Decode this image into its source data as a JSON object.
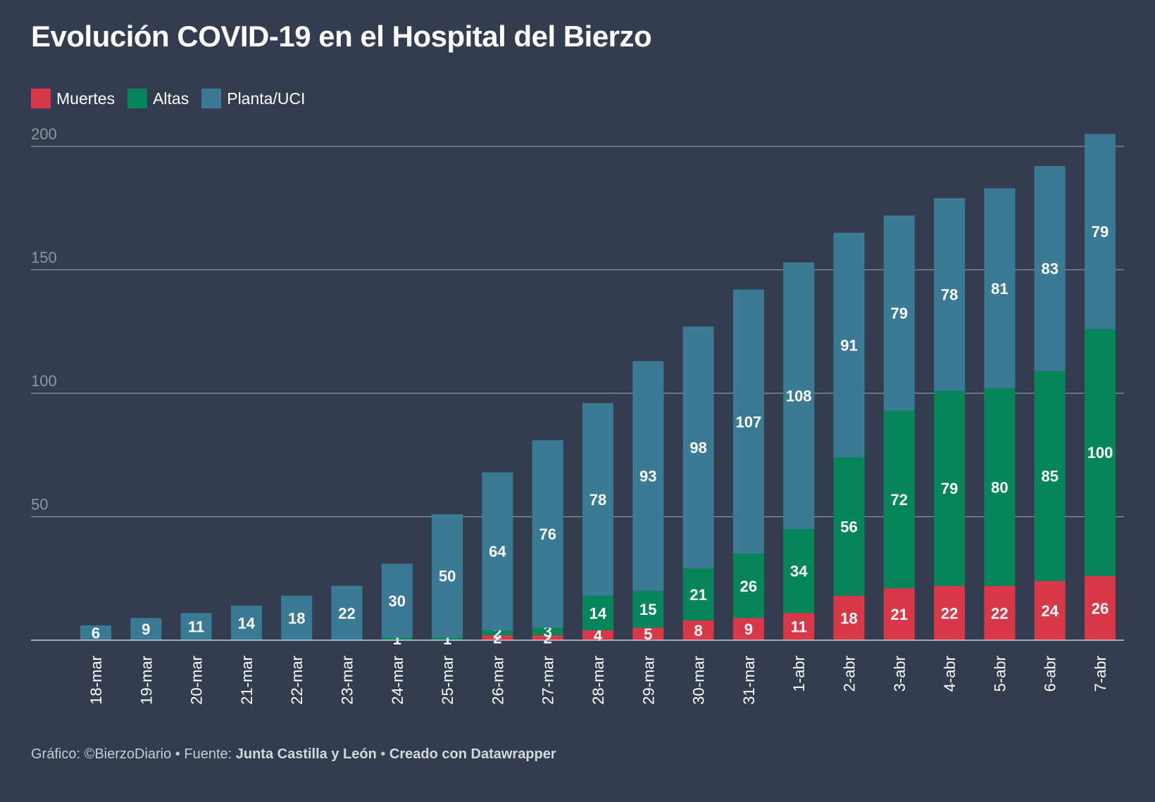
{
  "title": "Evolución COVID-19 en el Hospital del Bierzo",
  "legend": [
    {
      "label": "Muertes",
      "color": "#d93848"
    },
    {
      "label": "Altas",
      "color": "#06845a"
    },
    {
      "label": "Planta/UCI",
      "color": "#3a7a95"
    }
  ],
  "footer": {
    "prefix": "Gráfico: ©BierzoDiario • Fuente: ",
    "source": "Junta Castilla y León",
    "separator": " • ",
    "created": "Creado con Datawrapper"
  },
  "chart_data": {
    "type": "bar",
    "stacked": true,
    "title": "Evolución COVID-19 en el Hospital del Bierzo",
    "xlabel": "",
    "ylabel": "",
    "ylim": [
      0,
      200
    ],
    "yticks": [
      50,
      100,
      150,
      200
    ],
    "grid": true,
    "legend_position": "top-left",
    "categories": [
      "18-mar",
      "19-mar",
      "20-mar",
      "21-mar",
      "22-mar",
      "23-mar",
      "24-mar",
      "25-mar",
      "26-mar",
      "27-mar",
      "28-mar",
      "29-mar",
      "30-mar",
      "31-mar",
      "1-abr",
      "2-abr",
      "3-abr",
      "4-abr",
      "5-abr",
      "6-abr",
      "7-abr"
    ],
    "series": [
      {
        "name": "Muertes",
        "color": "#d93848",
        "values": [
          0,
          0,
          0,
          0,
          0,
          0,
          0,
          0,
          2,
          2,
          4,
          5,
          8,
          9,
          11,
          18,
          21,
          22,
          22,
          24,
          26
        ]
      },
      {
        "name": "Altas",
        "color": "#06845a",
        "values": [
          0,
          0,
          0,
          0,
          0,
          0,
          1,
          1,
          2,
          3,
          14,
          15,
          21,
          26,
          34,
          56,
          72,
          79,
          80,
          85,
          100
        ]
      },
      {
        "name": "Planta/UCI",
        "color": "#3a7a95",
        "values": [
          6,
          9,
          11,
          14,
          18,
          22,
          30,
          50,
          64,
          76,
          78,
          93,
          98,
          107,
          108,
          91,
          79,
          78,
          81,
          83,
          79
        ]
      }
    ]
  }
}
